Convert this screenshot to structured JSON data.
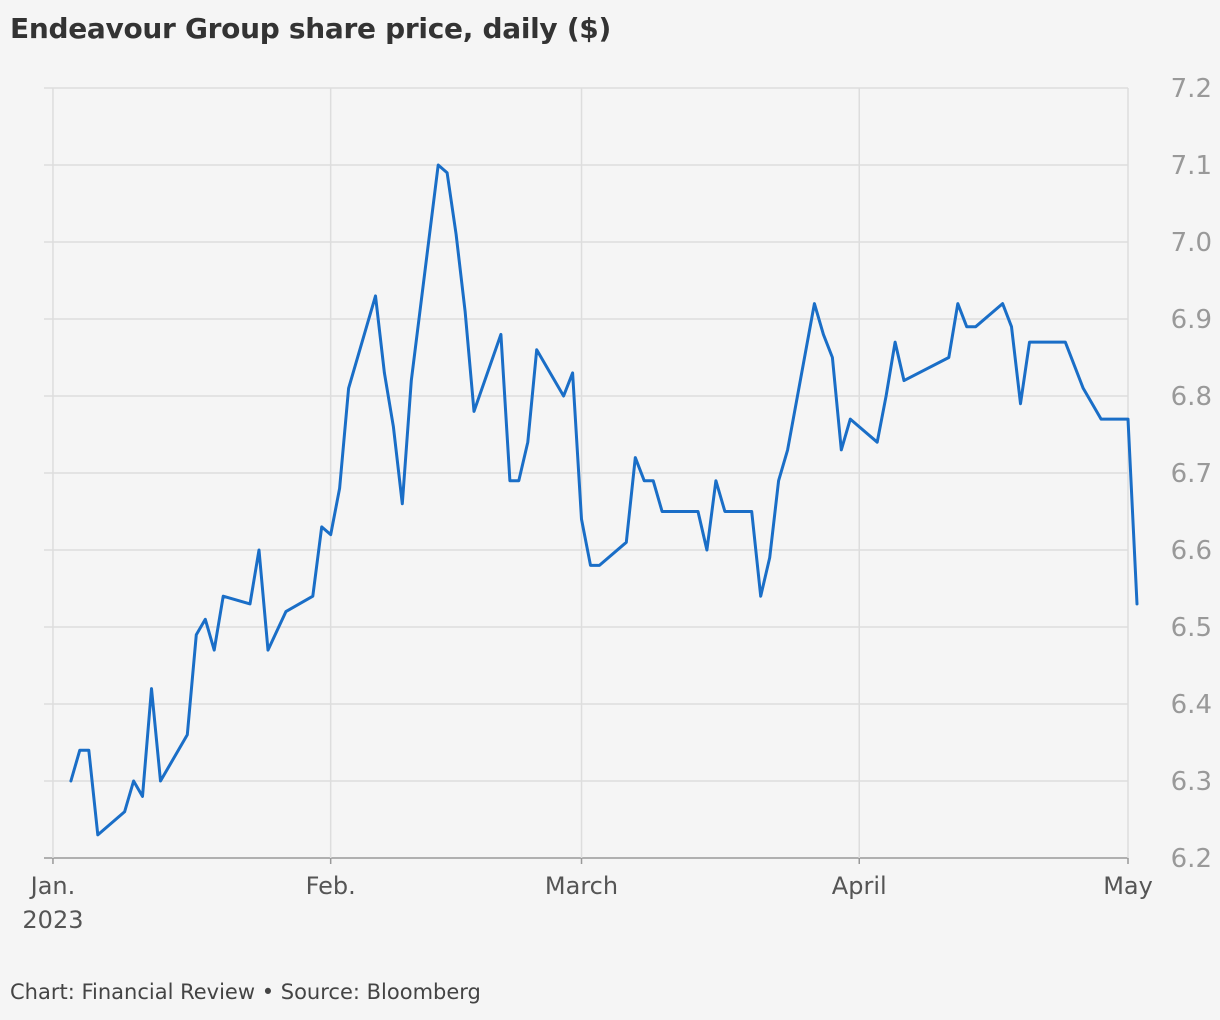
{
  "header": {
    "title": "Endeavour Group share price, daily ($)"
  },
  "footer": {
    "credit": "Chart: Financial Review • Source: Bloomberg"
  },
  "chart_data": {
    "type": "line",
    "title": "Endeavour Group share price, daily ($)",
    "xlabel": "",
    "ylabel": "",
    "grid": true,
    "ylim": [
      6.2,
      7.2
    ],
    "xlim": [
      "2022-12-31",
      "2023-05-01"
    ],
    "y_ticks": [
      "6.2",
      "6.3",
      "6.4",
      "6.5",
      "6.6",
      "6.7",
      "6.8",
      "6.9",
      "7.0",
      "7.1",
      "7.2"
    ],
    "x_ticks": [
      {
        "label": "Jan.",
        "sublabel": "2023",
        "date": "2023-01-01"
      },
      {
        "label": "Feb.",
        "date": "2023-02-01"
      },
      {
        "label": "March",
        "date": "2023-03-01"
      },
      {
        "label": "April",
        "date": "2023-04-01"
      },
      {
        "label": "May",
        "date": "2023-05-01"
      }
    ],
    "line_color": "#1a6ec7",
    "series": [
      {
        "x": [
          "2023-01-03",
          "2023-01-04",
          "2023-01-05",
          "2023-01-06",
          "2023-01-09",
          "2023-01-10",
          "2023-01-11",
          "2023-01-12",
          "2023-01-13",
          "2023-01-16",
          "2023-01-17",
          "2023-01-18",
          "2023-01-19",
          "2023-01-20",
          "2023-01-23",
          "2023-01-24",
          "2023-01-25",
          "2023-01-27",
          "2023-01-30",
          "2023-01-31",
          "2023-02-01",
          "2023-02-02",
          "2023-02-03",
          "2023-02-06",
          "2023-02-07",
          "2023-02-08",
          "2023-02-09",
          "2023-02-10",
          "2023-02-13",
          "2023-02-14",
          "2023-02-15",
          "2023-02-16",
          "2023-02-17",
          "2023-02-20",
          "2023-02-21",
          "2023-02-22",
          "2023-02-23",
          "2023-02-24",
          "2023-02-27",
          "2023-02-28",
          "2023-03-01",
          "2023-03-02",
          "2023-03-03",
          "2023-03-06",
          "2023-03-07",
          "2023-03-08",
          "2023-03-09",
          "2023-03-10",
          "2023-03-13",
          "2023-03-14",
          "2023-03-15",
          "2023-03-16",
          "2023-03-17",
          "2023-03-20",
          "2023-03-21",
          "2023-03-22",
          "2023-03-23",
          "2023-03-24",
          "2023-03-27",
          "2023-03-28",
          "2023-03-29",
          "2023-03-30",
          "2023-03-31",
          "2023-04-03",
          "2023-04-04",
          "2023-04-05",
          "2023-04-06",
          "2023-04-11",
          "2023-04-12",
          "2023-04-13",
          "2023-04-14",
          "2023-04-17",
          "2023-04-18",
          "2023-04-19",
          "2023-04-20",
          "2023-04-21",
          "2023-04-24",
          "2023-04-26",
          "2023-04-27",
          "2023-04-28",
          "2023-05-01",
          "2023-05-02"
        ],
        "values": [
          6.3,
          6.34,
          6.34,
          6.23,
          6.26,
          6.3,
          6.28,
          6.42,
          6.3,
          6.36,
          6.49,
          6.51,
          6.47,
          6.54,
          6.53,
          6.6,
          6.47,
          6.52,
          6.54,
          6.63,
          6.62,
          6.68,
          6.81,
          6.93,
          6.83,
          6.76,
          6.66,
          6.82,
          7.1,
          7.09,
          7.01,
          6.91,
          6.78,
          6.88,
          6.69,
          6.69,
          6.74,
          6.86,
          6.8,
          6.83,
          6.64,
          6.58,
          6.58,
          6.61,
          6.72,
          6.69,
          6.69,
          6.65,
          6.65,
          6.65,
          6.6,
          6.69,
          6.65,
          6.65,
          6.54,
          6.59,
          6.69,
          6.73,
          6.92,
          6.88,
          6.85,
          6.73,
          6.77,
          6.74,
          6.8,
          6.87,
          6.82,
          6.85,
          6.92,
          6.89,
          6.89,
          6.92,
          6.89,
          6.79,
          6.87,
          6.87,
          6.87,
          6.81,
          6.79,
          6.77,
          6.77,
          6.53
        ]
      }
    ]
  }
}
